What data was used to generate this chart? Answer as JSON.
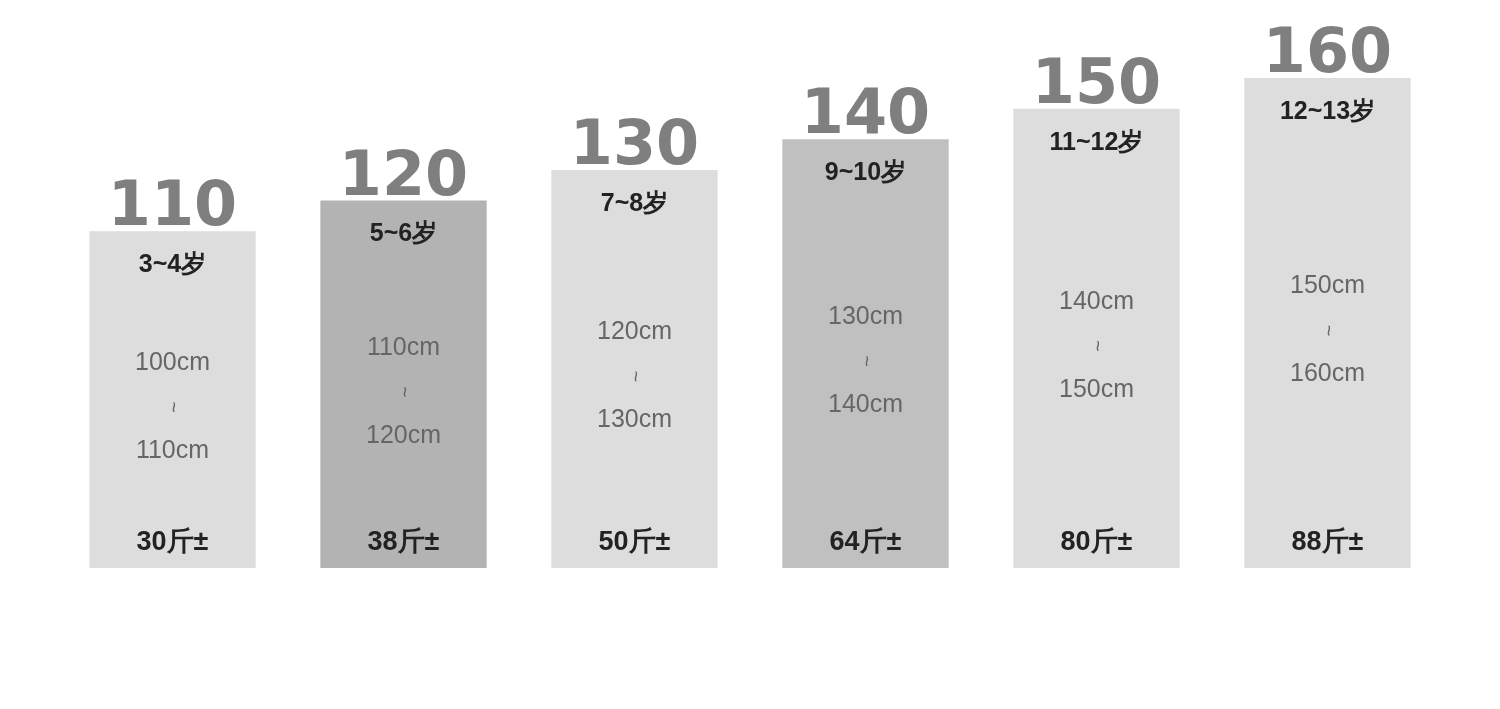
{
  "chart_data": {
    "type": "bar",
    "categories": [
      "3~4岁",
      "5~6岁",
      "7~8岁",
      "9~10岁",
      "11~12岁",
      "12~13岁"
    ],
    "values": [
      110,
      120,
      130,
      140,
      150,
      160
    ],
    "data_labels": true,
    "colors": [
      "#dddddd",
      "#b3b3b3",
      "#dddddd",
      "#c0c0c0",
      "#dddddd",
      "#dddddd"
    ],
    "annotations": [
      "100cm",
      "~",
      "110cm",
      "30斤±",
      "110cm",
      "~",
      "120cm",
      "38斤±",
      "120cm",
      "~",
      "130cm",
      "50斤±",
      "130cm",
      "~",
      "140cm",
      "64斤±",
      "140cm",
      "~",
      "150cm",
      "80斤±",
      "150cm",
      "~",
      "160cm",
      "88斤±"
    ],
    "legend": false
  }
}
